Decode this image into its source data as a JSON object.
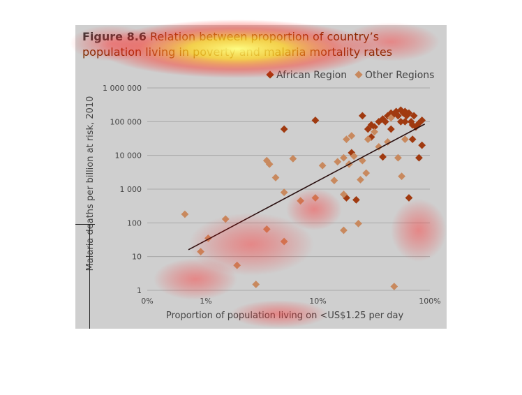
{
  "figure": {
    "label": "Figure 8.6",
    "title": "Relation between proportion of country’s population living in poverty and malaria mortality rates"
  },
  "colors": {
    "african": "#a03a10",
    "other": "#c8895e",
    "trend": "#2a1010",
    "grid": "#a8a8a8",
    "background": "#cfcfcf"
  },
  "chart_data": {
    "type": "scatter",
    "xlabel": "Proportion of population living on <US$1.25 per day",
    "ylabel": "Malaria deaths per billion at risk, 2010",
    "x_scale": "log",
    "y_scale": "log",
    "xlim": [
      0.3,
      100
    ],
    "ylim": [
      1,
      1000000
    ],
    "x_ticks": [
      {
        "value": 0.3,
        "label": "0%"
      },
      {
        "value": 1,
        "label": "1%"
      },
      {
        "value": 10,
        "label": "10%"
      },
      {
        "value": 100,
        "label": "100%"
      }
    ],
    "y_ticks": [
      {
        "value": 1,
        "label": "1"
      },
      {
        "value": 10,
        "label": "10"
      },
      {
        "value": 100,
        "label": "100"
      },
      {
        "value": 1000,
        "label": "1 000"
      },
      {
        "value": 10000,
        "label": "10 000"
      },
      {
        "value": 100000,
        "label": "100 000"
      },
      {
        "value": 1000000,
        "label": "1 000 000"
      }
    ],
    "grid": "horizontal",
    "legend_position": "top-right",
    "series": [
      {
        "name": "African Region",
        "marker": "diamond",
        "points": [
          [
            5,
            60000
          ],
          [
            9.5,
            110000
          ],
          [
            25,
            150000
          ],
          [
            28,
            60000
          ],
          [
            30,
            80000
          ],
          [
            32,
            70000
          ],
          [
            35,
            100000
          ],
          [
            38,
            120000
          ],
          [
            40,
            100000
          ],
          [
            42,
            150000
          ],
          [
            45,
            180000
          ],
          [
            48,
            170000
          ],
          [
            50,
            200000
          ],
          [
            52,
            150000
          ],
          [
            55,
            220000
          ],
          [
            58,
            180000
          ],
          [
            60,
            200000
          ],
          [
            62,
            150000
          ],
          [
            65,
            180000
          ],
          [
            68,
            100000
          ],
          [
            70,
            80000
          ],
          [
            72,
            150000
          ],
          [
            75,
            70000
          ],
          [
            80,
            90000
          ],
          [
            85,
            110000
          ],
          [
            45,
            60000
          ],
          [
            55,
            100000
          ],
          [
            38,
            9000
          ],
          [
            70,
            30000
          ],
          [
            80,
            8500
          ],
          [
            85,
            20000
          ],
          [
            65,
            550
          ],
          [
            22,
            480
          ],
          [
            18,
            550
          ],
          [
            20,
            12000
          ],
          [
            30,
            35000
          ],
          [
            60,
            100000
          ]
        ]
      },
      {
        "name": "Other Regions",
        "marker": "diamond",
        "points": [
          [
            0.65,
            180
          ],
          [
            0.9,
            14
          ],
          [
            1.05,
            35
          ],
          [
            1.5,
            130
          ],
          [
            1.9,
            5.5
          ],
          [
            2.8,
            1.5
          ],
          [
            3.5,
            7000
          ],
          [
            3.7,
            5500
          ],
          [
            4.2,
            2200
          ],
          [
            3.5,
            65
          ],
          [
            5.0,
            28
          ],
          [
            5.0,
            800
          ],
          [
            6.0,
            8000
          ],
          [
            7.0,
            450
          ],
          [
            9.5,
            550
          ],
          [
            11,
            5000
          ],
          [
            14,
            1800
          ],
          [
            15,
            6500
          ],
          [
            17,
            8500
          ],
          [
            17,
            700
          ],
          [
            17,
            60
          ],
          [
            18,
            30000
          ],
          [
            19,
            5500
          ],
          [
            20,
            38000
          ],
          [
            21,
            9500
          ],
          [
            23,
            95
          ],
          [
            24,
            1900
          ],
          [
            25,
            7000
          ],
          [
            27,
            3000
          ],
          [
            28,
            30000
          ],
          [
            32,
            50000
          ],
          [
            35,
            18000
          ],
          [
            42,
            25000
          ],
          [
            48,
            1.3
          ],
          [
            52,
            8500
          ],
          [
            56,
            2400
          ],
          [
            60,
            30000
          ],
          [
            45,
            130000
          ]
        ]
      }
    ],
    "trendline": {
      "x": [
        0.7,
        90
      ],
      "y": [
        16,
        85000
      ]
    }
  }
}
